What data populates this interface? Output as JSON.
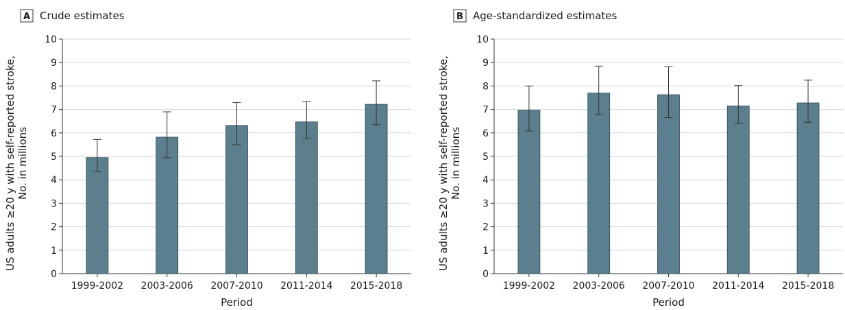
{
  "chart_data": [
    {
      "type": "bar",
      "panel_label": "A",
      "title": "Crude estimates",
      "xlabel": "Period",
      "ylabel": [
        "US adults ≥20 y with self-reported stroke,",
        "No. in millions"
      ],
      "categories": [
        "1999-2002",
        "2003-2006",
        "2007-2010",
        "2011-2014",
        "2015-2018"
      ],
      "values": [
        4.95,
        5.82,
        6.32,
        6.47,
        7.22
      ],
      "error_low": [
        4.35,
        4.95,
        5.5,
        5.75,
        6.35
      ],
      "error_high": [
        5.72,
        6.9,
        7.3,
        7.33,
        8.22
      ],
      "ylim": [
        0,
        10
      ],
      "yticks": [
        "0",
        "1",
        "2",
        "3",
        "4",
        "5",
        "6",
        "7",
        "8",
        "9",
        "10"
      ],
      "grid": true,
      "bar_color": "#5b7f8d"
    },
    {
      "type": "bar",
      "panel_label": "B",
      "title": "Age-standardized estimates",
      "xlabel": "Period",
      "ylabel": [
        "US adults ≥20 y with self-reported stroke,",
        "No. in millions"
      ],
      "categories": [
        "1999-2002",
        "2003-2006",
        "2007-2010",
        "2011-2014",
        "2015-2018"
      ],
      "values": [
        6.97,
        7.7,
        7.63,
        7.15,
        7.28
      ],
      "error_low": [
        6.08,
        6.78,
        6.65,
        6.4,
        6.45
      ],
      "error_high": [
        8.0,
        8.85,
        8.82,
        8.02,
        8.25
      ],
      "ylim": [
        0,
        10
      ],
      "yticks": [
        "0",
        "1",
        "2",
        "3",
        "4",
        "5",
        "6",
        "7",
        "8",
        "9",
        "10"
      ],
      "grid": true,
      "bar_color": "#5b7f8d"
    }
  ]
}
